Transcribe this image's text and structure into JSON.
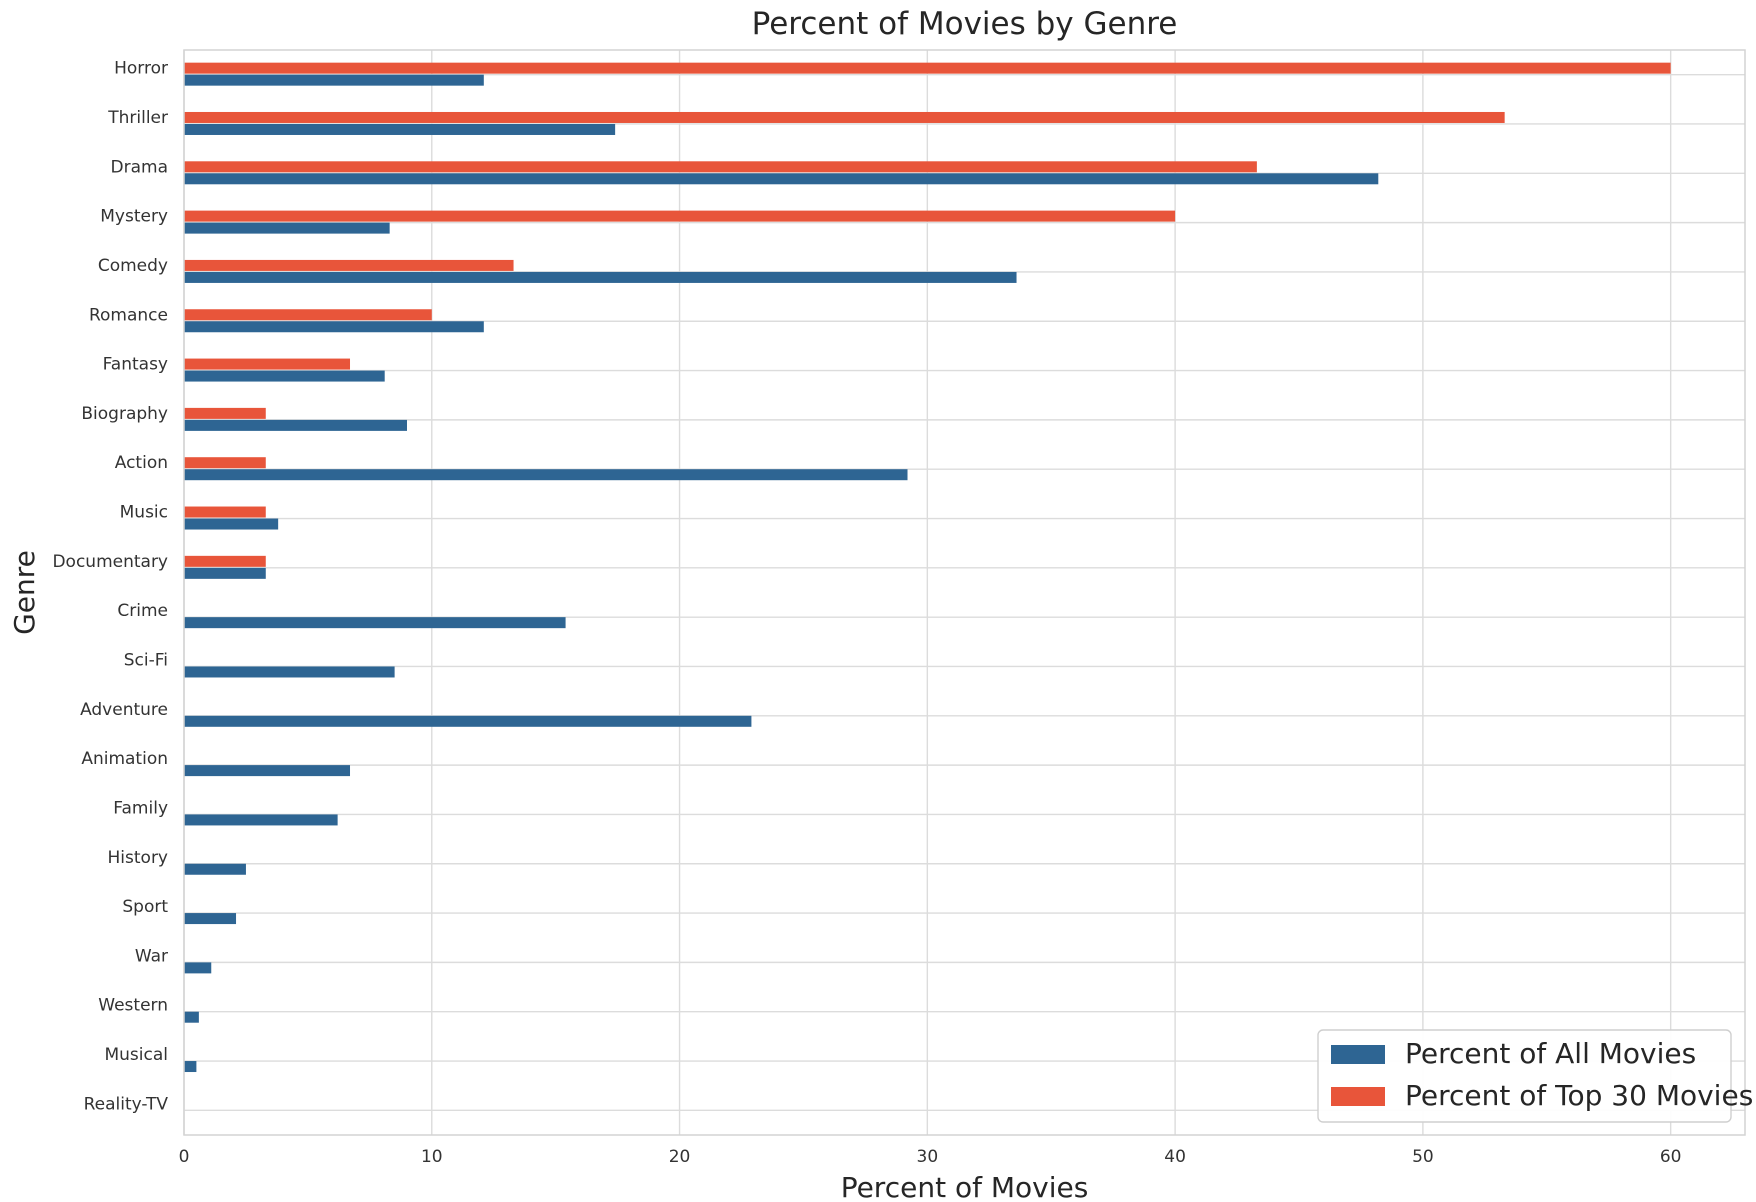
{
  "chart_data": {
    "type": "bar",
    "orientation": "horizontal",
    "title": "Percent of Movies by Genre",
    "xlabel": "Percent of Movies",
    "ylabel": "Genre",
    "xlim": [
      0,
      63
    ],
    "xticks": [
      0,
      10,
      20,
      30,
      40,
      50,
      60
    ],
    "grid": true,
    "legend_position": "bottom-right",
    "categories": [
      "Horror",
      "Thriller",
      "Drama",
      "Mystery",
      "Comedy",
      "Romance",
      "Fantasy",
      "Biography",
      "Action",
      "Music",
      "Documentary",
      "Crime",
      "Sci-Fi",
      "Adventure",
      "Animation",
      "Family",
      "History",
      "Sport",
      "War",
      "Western",
      "Musical",
      "Reality-TV"
    ],
    "series": [
      {
        "name": "Percent of All Movies",
        "color": "#2e6593",
        "values": [
          12.1,
          17.4,
          48.2,
          8.3,
          33.6,
          12.1,
          8.1,
          9.0,
          29.2,
          3.8,
          3.3,
          15.4,
          8.5,
          22.9,
          6.7,
          6.2,
          2.5,
          2.1,
          1.1,
          0.6,
          0.5,
          0.0
        ]
      },
      {
        "name": "Percent of Top 30 Movies",
        "color": "#e8553a",
        "values": [
          60.0,
          53.3,
          43.3,
          40.0,
          13.3,
          10.0,
          6.7,
          3.3,
          3.3,
          3.3,
          3.3,
          0,
          0,
          0,
          0,
          0,
          0,
          0,
          0,
          0,
          0,
          0
        ]
      }
    ]
  }
}
